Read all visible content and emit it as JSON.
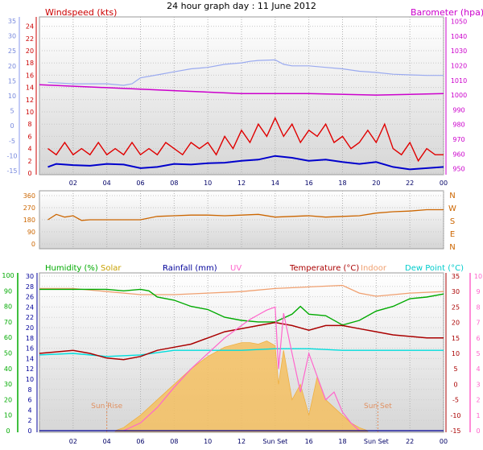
{
  "title": "24 hour graph day : 11 June 2012",
  "colors": {
    "wind": "#e00000",
    "avgwind": "#0000cc",
    "baro": "#cc00cc",
    "winddir": "#cc6600",
    "humidity": "#00aa00",
    "solar": "#f5c060",
    "rain": "#000099",
    "uv": "#ff66cc",
    "temp": "#aa0000",
    "indoor": "#f0a070",
    "dew": "#00dddd"
  },
  "chart_data": [
    {
      "type": "line",
      "name": "wind-baro",
      "left_label": "Windspeed (kts)",
      "right_label": "Barometer (hpa)",
      "x_ticks": [
        "02",
        "04",
        "06",
        "08",
        "10",
        "12",
        "14",
        "16",
        "18",
        "20",
        "22",
        "00"
      ],
      "blue_axis": {
        "ticks": [
          35,
          30,
          25,
          20,
          15,
          10,
          5,
          0,
          -5,
          -10,
          -15
        ]
      },
      "wind_axis": {
        "ticks": [
          24,
          22,
          20,
          18,
          16,
          14,
          12,
          10,
          8,
          6,
          4,
          2,
          0
        ],
        "ylim": [
          0,
          25
        ]
      },
      "baro_axis": {
        "ticks": [
          1050,
          1040,
          1030,
          1020,
          1010,
          1000,
          990,
          980,
          970,
          960,
          950
        ],
        "ylim": [
          946,
          1053
        ]
      },
      "series": [
        {
          "key": "gust",
          "x": [
            0.5,
            1,
            1.5,
            2,
            2.5,
            3,
            3.5,
            4,
            4.5,
            5,
            5.5,
            6,
            6.5,
            7,
            7.5,
            8,
            8.5,
            9,
            9.5,
            10,
            10.5,
            11,
            11.5,
            12,
            12.5,
            13,
            13.5,
            14,
            14.5,
            15,
            15.5,
            16,
            16.5,
            17,
            17.5,
            18,
            18.5,
            19,
            19.5,
            20,
            20.5,
            21,
            21.5,
            22,
            22.5,
            23,
            23.5,
            24
          ],
          "values": [
            4,
            3,
            5,
            3,
            4,
            3,
            5,
            3,
            4,
            3,
            5,
            3,
            4,
            3,
            5,
            4,
            3,
            5,
            4,
            5,
            3,
            6,
            4,
            7,
            5,
            8,
            6,
            9,
            6,
            8,
            5,
            7,
            6,
            8,
            5,
            6,
            4,
            5,
            7,
            5,
            8,
            4,
            3,
            5,
            2,
            4,
            3,
            3
          ]
        },
        {
          "key": "avg",
          "x": [
            0.5,
            1,
            2,
            3,
            4,
            5,
            6,
            7,
            8,
            9,
            10,
            11,
            12,
            13,
            14,
            15,
            16,
            17,
            18,
            19,
            20,
            21,
            22,
            23,
            24
          ],
          "values": [
            1,
            1.5,
            1.3,
            1.2,
            1.5,
            1.4,
            0.8,
            1,
            1.5,
            1.4,
            1.6,
            1.7,
            2,
            2.2,
            2.8,
            2.5,
            2,
            2.2,
            1.8,
            1.5,
            1.8,
            1,
            0.6,
            0.8,
            1
          ]
        },
        {
          "key": "blue_trace",
          "x": [
            0.5,
            2,
            4,
            5,
            5.5,
            6,
            7,
            8,
            9,
            10,
            11,
            12,
            12.5,
            13,
            14,
            14.5,
            15,
            16,
            17,
            18,
            19,
            20,
            21,
            22,
            23,
            24
          ],
          "values": [
            14.5,
            14,
            14,
            13.5,
            14,
            16,
            17,
            18,
            19,
            19.5,
            20.5,
            21,
            21.5,
            21.8,
            22,
            20.5,
            20,
            20,
            19.5,
            19,
            18.2,
            17.8,
            17.2,
            17,
            16.8,
            16.8
          ]
        },
        {
          "key": "baro",
          "x": [
            0,
            4,
            8,
            12,
            16,
            20,
            24
          ],
          "values": [
            1007,
            1005,
            1003,
            1001,
            1001,
            1000,
            1001
          ]
        }
      ]
    },
    {
      "type": "line",
      "name": "wind-direction",
      "y_ticks": [
        360,
        270,
        180,
        90,
        0
      ],
      "compass": [
        "N",
        "W",
        "S",
        "E",
        "N"
      ],
      "ylim": [
        0,
        360
      ],
      "x": [
        0.5,
        1,
        1.5,
        2,
        2.5,
        3,
        5,
        6,
        7,
        8,
        9,
        10,
        11,
        12,
        13,
        14,
        15,
        16,
        17,
        18,
        19,
        20,
        21,
        22,
        23,
        24
      ],
      "values": [
        180,
        220,
        200,
        210,
        175,
        180,
        180,
        180,
        205,
        210,
        215,
        215,
        210,
        215,
        220,
        200,
        205,
        210,
        200,
        205,
        210,
        230,
        240,
        245,
        255,
        255
      ]
    },
    {
      "type": "line",
      "name": "multi",
      "legend": [
        "Humidity (%)",
        "Solar",
        "Rainfall (mm)",
        "UV",
        "Temperature (°C)",
        "Indoor",
        "Dew Point (°C)"
      ],
      "axes": {
        "humidity": {
          "ticks": [
            100,
            90,
            80,
            70,
            60,
            50,
            40,
            30,
            20,
            10,
            0
          ],
          "ylim": [
            0,
            100
          ]
        },
        "rain": {
          "ticks": [
            30,
            28,
            26,
            24,
            22,
            20,
            18,
            16,
            14,
            12,
            10,
            8,
            6,
            4,
            2,
            0
          ],
          "ylim": [
            0,
            30
          ]
        },
        "temp": {
          "ticks": [
            35,
            30,
            25,
            20,
            15,
            10,
            5,
            0,
            -5,
            -10,
            -15
          ],
          "ylim": [
            -15,
            35
          ]
        },
        "uv": {
          "ticks": [
            10,
            9,
            8,
            7,
            6,
            5,
            4,
            3,
            2,
            1,
            0
          ],
          "ylim": [
            0,
            10
          ]
        }
      },
      "x_ticks": [
        "02",
        "04",
        "06",
        "08",
        "10",
        "12",
        "Sun Set",
        "16",
        "18",
        "Sun Set",
        "22",
        "00"
      ],
      "annotations": [
        "Sun Rise",
        "Sun Set"
      ],
      "series": [
        {
          "key": "humidity",
          "x": [
            0,
            2,
            4,
            5,
            6,
            6.5,
            7,
            8,
            9,
            10,
            11,
            12,
            13,
            14,
            15,
            15.5,
            16,
            17,
            18,
            19,
            20,
            21,
            22,
            23,
            24
          ],
          "values": [
            91,
            91,
            91,
            90,
            91,
            90,
            86,
            84,
            80,
            78,
            73,
            71,
            70,
            70,
            75,
            80,
            75,
            74,
            68,
            71,
            77,
            80,
            85,
            86,
            88
          ]
        },
        {
          "key": "temp",
          "x": [
            0,
            2,
            3,
            4,
            5,
            6,
            7,
            8,
            9,
            10,
            11,
            12,
            13,
            14,
            15,
            16,
            17,
            18,
            19,
            20,
            21,
            22,
            23,
            24
          ],
          "values": [
            10,
            11,
            10,
            8.5,
            8,
            9,
            11,
            12,
            13,
            15,
            17,
            18,
            19,
            20,
            19,
            17.5,
            19,
            19,
            18,
            17,
            16,
            15.5,
            15,
            15
          ]
        },
        {
          "key": "dew",
          "x": [
            0,
            2,
            4,
            6,
            8,
            10,
            12,
            14,
            16,
            18,
            20,
            22,
            24
          ],
          "values": [
            9.5,
            10,
            9,
            9.5,
            11,
            11,
            11,
            11.5,
            11.5,
            11,
            11,
            11,
            11
          ]
        },
        {
          "key": "indoor",
          "x": [
            0,
            2,
            4,
            6,
            8,
            10,
            12,
            14,
            16,
            18,
            19,
            20,
            22,
            24
          ],
          "values": [
            31,
            31,
            30,
            29,
            29,
            29.5,
            30,
            31,
            31.5,
            32,
            29.5,
            28.5,
            29.5,
            30
          ]
        },
        {
          "key": "solar",
          "x": [
            4.5,
            5,
            5.5,
            6,
            7,
            8,
            9,
            10,
            11,
            12,
            12.5,
            13,
            13.5,
            14,
            14.2,
            14.5,
            15,
            15.5,
            16,
            16.5,
            17,
            17.5,
            18,
            18.5,
            19,
            19.5
          ],
          "values": [
            0,
            2,
            6,
            10,
            20,
            30,
            40,
            48,
            54,
            57,
            57,
            56,
            58,
            55,
            30,
            52,
            20,
            30,
            10,
            35,
            20,
            15,
            10,
            5,
            2,
            0
          ]
        },
        {
          "key": "uv",
          "x": [
            5,
            6,
            7,
            8,
            9,
            10,
            11,
            12,
            12.5,
            13,
            13.5,
            14,
            14.2,
            14.5,
            15,
            15.5,
            16,
            16.5,
            17,
            17.5,
            18,
            18.5,
            19
          ],
          "values": [
            0,
            0.5,
            1.5,
            2.8,
            4,
            5,
            6,
            6.8,
            7.2,
            7.5,
            7.8,
            8,
            4,
            7.6,
            5,
            2.5,
            5,
            3.5,
            2,
            2.5,
            1.2,
            0.5,
            0
          ]
        }
      ]
    }
  ]
}
